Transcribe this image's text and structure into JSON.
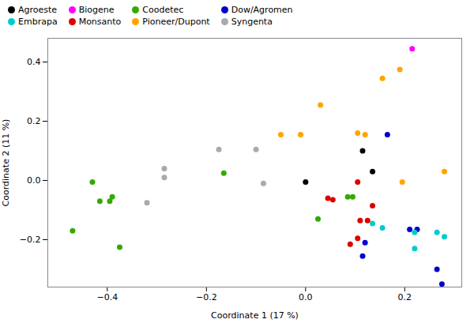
{
  "chart_data": {
    "type": "scatter",
    "xlabel": "Coordinate 1 (17 %)",
    "ylabel": "Coordinate 2 (11 %)",
    "xlim": [
      -0.52,
      0.315
    ],
    "ylim": [
      -0.36,
      0.48
    ],
    "xticks": [
      -0.4,
      -0.2,
      {
        "value": 0.0,
        "label": "0.0"
      },
      0.2
    ],
    "yticks": [
      -0.2,
      {
        "value": 0.0,
        "label": "0.0"
      },
      0.2,
      0.4
    ],
    "grid": false,
    "legend": "upper left",
    "marker": "circle",
    "series": [
      {
        "name": "Agroeste",
        "color": "#000000",
        "x": [
          0.0,
          0.115,
          0.135
        ],
        "y": [
          -0.005,
          0.1,
          0.03
        ]
      },
      {
        "name": "Biogene",
        "color": "#FF00FF",
        "x": [
          0.215
        ],
        "y": [
          0.445
        ]
      },
      {
        "name": "Coodetec",
        "color": "#33AA00",
        "x": [
          -0.47,
          -0.43,
          -0.39,
          -0.395,
          -0.415,
          -0.375,
          -0.165,
          0.025,
          0.085,
          0.095
        ],
        "y": [
          -0.17,
          -0.005,
          -0.055,
          -0.07,
          -0.07,
          -0.225,
          0.025,
          -0.13,
          -0.055,
          -0.055
        ]
      },
      {
        "name": "Dow/Agromen",
        "color": "#0000CC",
        "x": [
          0.115,
          0.12,
          0.21,
          0.225,
          0.265,
          0.275,
          0.165
        ],
        "y": [
          -0.255,
          -0.21,
          -0.165,
          -0.165,
          -0.3,
          -0.35,
          0.155
        ]
      },
      {
        "name": "Embrapa",
        "color": "#00CCCC",
        "x": [
          0.135,
          0.155,
          0.22,
          0.265,
          0.28,
          0.22
        ],
        "y": [
          -0.145,
          -0.16,
          -0.175,
          -0.175,
          -0.19,
          -0.23
        ]
      },
      {
        "name": "Monsanto",
        "color": "#DD0000",
        "x": [
          0.045,
          0.055,
          0.105,
          0.11,
          0.105,
          0.125,
          0.135,
          0.09
        ],
        "y": [
          -0.06,
          -0.065,
          -0.005,
          -0.135,
          -0.195,
          -0.135,
          -0.085,
          -0.215
        ]
      },
      {
        "name": "Pioneer/Dupont",
        "color": "#FFA500",
        "x": [
          -0.05,
          -0.01,
          0.03,
          0.105,
          0.12,
          0.155,
          0.19,
          0.195,
          0.28
        ],
        "y": [
          0.155,
          0.155,
          0.255,
          0.16,
          0.155,
          0.345,
          0.375,
          -0.005,
          0.03
        ]
      },
      {
        "name": "Syngenta",
        "color": "#AAAAAA",
        "x": [
          -0.32,
          -0.285,
          -0.285,
          -0.175,
          -0.1,
          -0.085
        ],
        "y": [
          -0.075,
          0.04,
          0.01,
          0.105,
          0.105,
          -0.01
        ]
      }
    ]
  }
}
